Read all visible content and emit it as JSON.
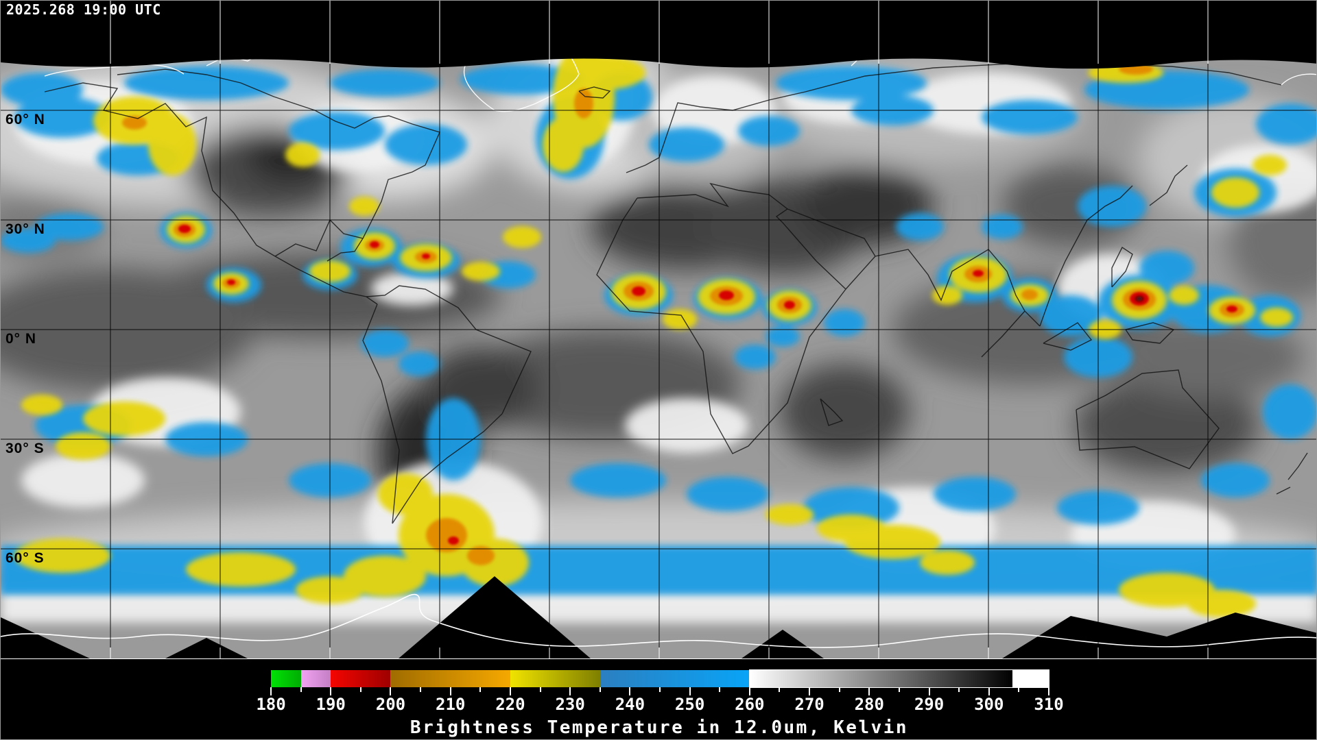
{
  "header": {
    "timestamp": "2025.268 19:00 UTC"
  },
  "map": {
    "latitude_labels": [
      {
        "label": "60° N",
        "lat": 60
      },
      {
        "label": "30° N",
        "lat": 30
      },
      {
        "label": "0° N",
        "lat": 0
      },
      {
        "label": "30° S",
        "lat": -30
      },
      {
        "label": "60° S",
        "lat": -60
      }
    ],
    "grid_lon_step_deg": 30,
    "grid_lat_step_deg": 30
  },
  "palette": {
    "space_black": "#000000",
    "grid_line": "#000000",
    "grid_line_on_space": "#ffffff",
    "coastline_dark": "#101010",
    "coastline_light": "#ffffff",
    "cloud_blue": "#1b9ce4",
    "cloud_yellow": "#e7d509",
    "cloud_orange": "#e28d00",
    "cloud_red": "#d60000",
    "cloud_maroon": "#7d0000",
    "cloud_white": "#f2f2f2",
    "label_text": "#ffffff"
  },
  "colorbar": {
    "title": "Brightness Temperature in 12.0um, Kelvin",
    "unit": "Kelvin",
    "wavelength": "12.0um",
    "min_k": 180,
    "max_k": 310,
    "minor_tick_step_k": 5,
    "major_tick_step_k": 10,
    "tick_labels": [
      "180",
      "190",
      "200",
      "210",
      "220",
      "230",
      "240",
      "250",
      "260",
      "270",
      "280",
      "290",
      "300",
      "310"
    ],
    "segments": [
      {
        "from": 180,
        "to": 185,
        "colors": [
          "#00e205",
          "#00ad04"
        ]
      },
      {
        "from": 185,
        "to": 190,
        "colors": [
          "#f2a3f2",
          "#c47fc4"
        ]
      },
      {
        "from": 190,
        "to": 200,
        "colors": [
          "#f50500",
          "#9e0000"
        ]
      },
      {
        "from": 200,
        "to": 220,
        "colors": [
          "#a06c00",
          "#f5a800"
        ]
      },
      {
        "from": 220,
        "to": 235,
        "colors": [
          "#f0e300",
          "#7f7f00"
        ]
      },
      {
        "from": 235,
        "to": 260,
        "colors": [
          "#2b7fc0",
          "#09a4f7"
        ]
      },
      {
        "from": 260,
        "to": 304,
        "colors": [
          "#ffffff",
          "#000000"
        ],
        "outlined": true
      },
      {
        "from": 304,
        "to": 310,
        "colors": [
          "#ffffff",
          "#ffffff"
        ],
        "outlined": true
      }
    ]
  }
}
